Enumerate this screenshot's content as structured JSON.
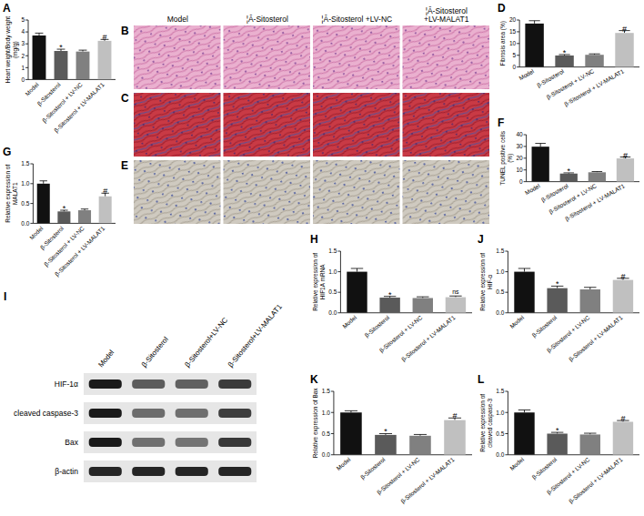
{
  "chart_data": [
    {
      "panel_label": "A",
      "type": "bar",
      "y_label": "Heart weight/Body weight (mg/g)",
      "categories": [
        "Model",
        "β-Sitosterol",
        "β-Sitosterol + LV-NC",
        "β-Sitosterol + LV-MALAT1"
      ],
      "values": [
        3.7,
        2.4,
        2.35,
        3.25
      ],
      "errors": [
        0.2,
        0.15,
        0.12,
        0.12
      ],
      "colors": [
        "#111111",
        "#5a5a5a",
        "#808080",
        "#c0c0c0"
      ],
      "ylim": [
        0,
        5
      ],
      "yticks": [
        0,
        1,
        2,
        3,
        4,
        5
      ],
      "annotations": [
        {
          "category": "β-Sitosterol",
          "text": "*"
        },
        {
          "category": "β-Sitosterol + LV-MALAT1",
          "text": "#"
        }
      ]
    },
    {
      "panel_label": "D",
      "type": "bar",
      "y_label": "Fibrosis area (%)",
      "categories": [
        "Model",
        "β-Sitosterol",
        "β-Sitosterol + LV-NC",
        "β-Sitosterol + LV-MALAT1"
      ],
      "values": [
        18.5,
        4.9,
        5.2,
        14.5
      ],
      "errors": [
        1.2,
        0.4,
        0.4,
        1.0
      ],
      "colors": [
        "#111111",
        "#5a5a5a",
        "#808080",
        "#c0c0c0"
      ],
      "ylim": [
        0,
        20
      ],
      "yticks": [
        0,
        5,
        10,
        15,
        20
      ],
      "annotations": [
        {
          "category": "β-Sitosterol",
          "text": "*"
        },
        {
          "category": "β-Sitosterol + LV-MALAT1",
          "text": "#"
        }
      ]
    },
    {
      "panel_label": "F",
      "type": "bar",
      "y_label": "TUNEL positive cells (%)",
      "categories": [
        "Model",
        "β-Sitosterol",
        "β-Sitosterol + LV-NC",
        "β-Sitosterol + LV-MALAT1"
      ],
      "values": [
        29.8,
        6.9,
        8.0,
        19.8
      ],
      "errors": [
        2.8,
        0.6,
        0.6,
        1.2
      ],
      "colors": [
        "#111111",
        "#5a5a5a",
        "#808080",
        "#c0c0c0"
      ],
      "ylim": [
        0,
        40
      ],
      "yticks": [
        0,
        10,
        20,
        30,
        40
      ],
      "annotations": [
        {
          "category": "β-Sitosterol",
          "text": "*"
        },
        {
          "category": "β-Sitosterol + LV-MALAT1",
          "text": "#"
        }
      ]
    },
    {
      "panel_label": "G",
      "type": "bar",
      "y_label": "Relative expression of MALAT1",
      "categories": [
        "Model",
        "β-Sitosterol",
        "β-Sitosterol + LV-NC",
        "β-Sitosterol + LV-MALAT1"
      ],
      "values": [
        1.0,
        0.3,
        0.33,
        0.68
      ],
      "errors": [
        0.07,
        0.03,
        0.03,
        0.08
      ],
      "colors": [
        "#111111",
        "#5a5a5a",
        "#808080",
        "#c0c0c0"
      ],
      "ylim": [
        0,
        1.5
      ],
      "yticks": [
        {
          "value": 0,
          "label": "0.0"
        },
        0.5,
        {
          "value": 1,
          "label": "1.0"
        },
        1.5
      ],
      "annotations": [
        {
          "category": "β-Sitosterol",
          "text": "*"
        },
        {
          "category": "β-Sitosterol + LV-MALAT1",
          "text": "#"
        }
      ]
    },
    {
      "panel_label": "H",
      "type": "bar",
      "y_label": "Relative expression of HIF1A mRNA",
      "categories": [
        "Model",
        "β-Sitosterol",
        "β-Sitosterol + LV-NC",
        "β-Sitosterol + LV-MALAT1"
      ],
      "values": [
        1.0,
        0.37,
        0.36,
        0.38
      ],
      "errors": [
        0.08,
        0.03,
        0.03,
        0.03
      ],
      "colors": [
        "#111111",
        "#5a5a5a",
        "#808080",
        "#c0c0c0"
      ],
      "ylim": [
        0,
        1.5
      ],
      "yticks": [
        {
          "value": 0,
          "label": "0.0"
        },
        0.5,
        {
          "value": 1,
          "label": "1.0"
        },
        1.5
      ],
      "annotations": [
        {
          "category": "β-Sitosterol",
          "text": "*"
        },
        {
          "category": "β-Sitosterol + LV-MALAT1",
          "text": "ns"
        }
      ]
    },
    {
      "panel_label": "J",
      "type": "bar",
      "y_label": "Relative expression of HIF-α",
      "categories": [
        "Model",
        "β-Sitosterol",
        "β-Sitosterol + LV-NC",
        "β-Sitosterol + LV-MALAT1"
      ],
      "values": [
        1.0,
        0.6,
        0.57,
        0.8
      ],
      "errors": [
        0.08,
        0.05,
        0.05,
        0.04
      ],
      "colors": [
        "#111111",
        "#5a5a5a",
        "#808080",
        "#c0c0c0"
      ],
      "ylim": [
        0,
        1.5
      ],
      "yticks": [
        {
          "value": 0,
          "label": "0.0"
        },
        0.5,
        {
          "value": 1,
          "label": "1.0"
        },
        1.5
      ],
      "annotations": [
        {
          "category": "β-Sitosterol",
          "text": "*"
        },
        {
          "category": "β-Sitosterol + LV-MALAT1",
          "text": "#"
        }
      ]
    },
    {
      "panel_label": "K",
      "type": "bar",
      "y_label": "Relative expression of Bax",
      "categories": [
        "Model",
        "β-Sitosterol",
        "β-Sitosterol + LV-NC",
        "β-Sitosterol + LV-MALAT1"
      ],
      "values": [
        1.0,
        0.47,
        0.45,
        0.82
      ],
      "errors": [
        0.04,
        0.03,
        0.03,
        0.05
      ],
      "colors": [
        "#111111",
        "#5a5a5a",
        "#808080",
        "#c0c0c0"
      ],
      "ylim": [
        0,
        1.5
      ],
      "yticks": [
        {
          "value": 0,
          "label": "0.0"
        },
        0.5,
        {
          "value": 1,
          "label": "1.0"
        },
        1.5
      ],
      "annotations": [
        {
          "category": "β-Sitosterol",
          "text": "*"
        },
        {
          "category": "β-Sitosterol + LV-MALAT1",
          "text": "#"
        }
      ]
    },
    {
      "panel_label": "L",
      "type": "bar",
      "y_label": "Relative expression of cleaved caspase-3",
      "categories": [
        "Model",
        "β-Sitosterol",
        "β-Sitosterol + LV-NC",
        "β-Sitosterol + LV-MALAT1"
      ],
      "values": [
        1.0,
        0.5,
        0.48,
        0.78
      ],
      "errors": [
        0.06,
        0.03,
        0.03,
        0.03
      ],
      "colors": [
        "#111111",
        "#5a5a5a",
        "#808080",
        "#c0c0c0"
      ],
      "ylim": [
        0,
        1.5
      ],
      "yticks": [
        {
          "value": 0,
          "label": "0.0"
        },
        0.5,
        {
          "value": 1,
          "label": "1.0"
        },
        1.5
      ],
      "annotations": [
        {
          "category": "β-Sitosterol",
          "text": "*"
        },
        {
          "category": "β-Sitosterol + LV-MALAT1",
          "text": "#"
        }
      ]
    }
  ],
  "histology": {
    "column_heads": [
      "Model",
      "¦Â-Sitosterol",
      "¦Â-Sitosterol +LV-NC",
      "¦Â-Sitosterol +LV-MALAT1"
    ],
    "panel_labels": [
      "B",
      "C",
      "E"
    ]
  },
  "western_blot": {
    "panel_label": "I",
    "lanes": [
      "Model",
      "β-Sitosterol",
      "β-Sitosterol+LV-NC",
      "β-Sitosterol+LV-MALAT1"
    ],
    "bands": [
      "HIF-1α",
      "cleaved caspase-3",
      "Bax",
      "β-actin"
    ]
  }
}
